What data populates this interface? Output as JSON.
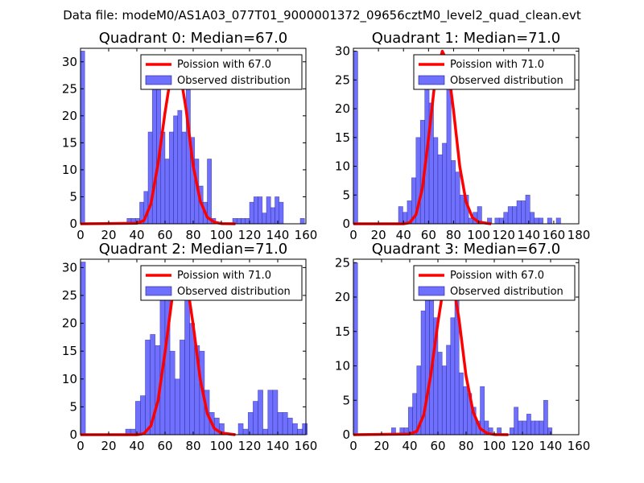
{
  "figure_title": "Data file: modeM0/AS1A03_077T01_9000001372_09656cztM0_level2_quad_clean.evt",
  "colors": {
    "histogram_fill": "#7070ff",
    "histogram_edge": "#1a1a80",
    "poisson_line": "#ff0000"
  },
  "chart_data": [
    {
      "type": "bar",
      "title": "Quadrant 0: Median=67.0",
      "legend": [
        "Poission with 67.0",
        "Observed distribution"
      ],
      "legend_position": "top-right",
      "poisson_mean": 67.0,
      "bin_width": 3,
      "xlim": [
        0,
        160
      ],
      "ylim": [
        0,
        32.5
      ],
      "xticks": [
        0,
        20,
        40,
        60,
        80,
        100,
        120,
        140,
        160
      ],
      "xtick_labels": [
        "0",
        "20",
        "40",
        "60",
        "80",
        "100",
        "120",
        "140",
        "160"
      ],
      "yticks": [
        0,
        5,
        10,
        15,
        20,
        25,
        30
      ],
      "ytick_labels": [
        "0",
        "5",
        "10",
        "15",
        "20",
        "25",
        "30"
      ],
      "bins": [
        [
          0,
          32
        ],
        [
          33,
          1
        ],
        [
          36,
          1
        ],
        [
          39,
          1
        ],
        [
          42,
          4
        ],
        [
          45,
          6
        ],
        [
          48,
          17
        ],
        [
          51,
          31
        ],
        [
          54,
          29
        ],
        [
          57,
          17
        ],
        [
          60,
          12
        ],
        [
          63,
          17
        ],
        [
          66,
          20
        ],
        [
          69,
          21
        ],
        [
          72,
          17
        ],
        [
          75,
          26
        ],
        [
          78,
          16
        ],
        [
          81,
          12
        ],
        [
          84,
          7
        ],
        [
          87,
          4
        ],
        [
          90,
          12
        ],
        [
          93,
          1
        ],
        [
          108,
          1
        ],
        [
          111,
          1
        ],
        [
          114,
          1
        ],
        [
          117,
          1
        ],
        [
          120,
          4
        ],
        [
          123,
          5
        ],
        [
          126,
          5
        ],
        [
          129,
          2
        ],
        [
          132,
          5
        ],
        [
          135,
          3
        ],
        [
          138,
          5
        ],
        [
          141,
          4
        ],
        [
          156,
          1
        ]
      ],
      "poisson": [
        [
          0,
          0
        ],
        [
          40,
          0.1
        ],
        [
          45,
          0.6
        ],
        [
          50,
          3.7
        ],
        [
          55,
          11.1
        ],
        [
          60,
          20.6
        ],
        [
          65,
          28.9
        ],
        [
          67,
          30.2
        ],
        [
          70,
          29.1
        ],
        [
          75,
          21.1
        ],
        [
          80,
          10.7
        ],
        [
          85,
          4.2
        ],
        [
          90,
          1.2
        ],
        [
          95,
          0.3
        ],
        [
          100,
          0.05
        ],
        [
          110,
          0
        ]
      ]
    },
    {
      "type": "bar",
      "title": "Quadrant 1: Median=71.0",
      "legend": [
        "Poission with 71.0",
        "Observed distribution"
      ],
      "legend_position": "top-right",
      "poisson_mean": 71.0,
      "bin_width": 3.5,
      "xlim": [
        0,
        180
      ],
      "ylim": [
        0,
        30.5
      ],
      "xticks": [
        0,
        20,
        40,
        60,
        80,
        100,
        120,
        140,
        160,
        180
      ],
      "xtick_labels": [
        "0",
        "20",
        "40",
        "60",
        "80",
        "100",
        "120",
        "140",
        "160",
        "180"
      ],
      "yticks": [
        0,
        5,
        10,
        15,
        20,
        25,
        30
      ],
      "ytick_labels": [
        "0",
        "5",
        "10",
        "15",
        "20",
        "25",
        "30"
      ],
      "bins": [
        [
          0,
          30
        ],
        [
          36,
          3
        ],
        [
          39.5,
          2
        ],
        [
          43,
          4
        ],
        [
          46.5,
          8
        ],
        [
          50,
          15
        ],
        [
          53.5,
          18
        ],
        [
          57,
          25
        ],
        [
          60.5,
          21
        ],
        [
          64,
          15
        ],
        [
          67.5,
          12
        ],
        [
          71,
          14
        ],
        [
          74.5,
          26
        ],
        [
          78,
          11
        ],
        [
          81.5,
          9
        ],
        [
          85,
          5
        ],
        [
          88.5,
          5
        ],
        [
          92,
          1
        ],
        [
          95.5,
          2
        ],
        [
          99,
          3
        ],
        [
          107,
          1
        ],
        [
          113,
          1
        ],
        [
          116.5,
          1
        ],
        [
          120,
          2
        ],
        [
          123.5,
          3
        ],
        [
          127,
          3
        ],
        [
          130.5,
          4
        ],
        [
          134,
          4
        ],
        [
          137.5,
          5
        ],
        [
          141,
          2
        ],
        [
          144.5,
          1
        ],
        [
          148,
          1
        ],
        [
          155,
          1
        ],
        [
          162,
          1
        ]
      ],
      "poisson": [
        [
          0,
          0
        ],
        [
          40,
          0.0
        ],
        [
          45,
          0.2
        ],
        [
          50,
          1.6
        ],
        [
          55,
          6.1
        ],
        [
          60,
          14.8
        ],
        [
          65,
          24.5
        ],
        [
          71,
          30.0
        ],
        [
          75,
          28.2
        ],
        [
          80,
          19.7
        ],
        [
          85,
          9.9
        ],
        [
          90,
          3.8
        ],
        [
          95,
          1.1
        ],
        [
          100,
          0.3
        ],
        [
          110,
          0
        ]
      ]
    },
    {
      "type": "bar",
      "title": "Quadrant 2: Median=71.0",
      "legend": [
        "Poission with 71.0",
        "Observed distribution"
      ],
      "legend_position": "top-right",
      "poisson_mean": 71.0,
      "bin_width": 3.5,
      "xlim": [
        0,
        160
      ],
      "ylim": [
        0,
        31.5
      ],
      "xticks": [
        0,
        20,
        40,
        60,
        80,
        100,
        120,
        140,
        160
      ],
      "xtick_labels": [
        "0",
        "20",
        "40",
        "60",
        "80",
        "100",
        "120",
        "140",
        "160"
      ],
      "yticks": [
        0,
        5,
        10,
        15,
        20,
        25,
        30
      ],
      "ytick_labels": [
        "0",
        "5",
        "10",
        "15",
        "20",
        "25",
        "30"
      ],
      "bins": [
        [
          0,
          31
        ],
        [
          32,
          1
        ],
        [
          35.5,
          1
        ],
        [
          39,
          6
        ],
        [
          42.5,
          7
        ],
        [
          46,
          17
        ],
        [
          49.5,
          18
        ],
        [
          53,
          16
        ],
        [
          56.5,
          25
        ],
        [
          60,
          28
        ],
        [
          63.5,
          15
        ],
        [
          67,
          10
        ],
        [
          70.5,
          17
        ],
        [
          74,
          29
        ],
        [
          77.5,
          20
        ],
        [
          81,
          16
        ],
        [
          84.5,
          15
        ],
        [
          88,
          8
        ],
        [
          91.5,
          4
        ],
        [
          95,
          3
        ],
        [
          98.5,
          2
        ],
        [
          112,
          2
        ],
        [
          115.5,
          1
        ],
        [
          119,
          4
        ],
        [
          122.5,
          6
        ],
        [
          126,
          8
        ],
        [
          129.5,
          1
        ],
        [
          133,
          8
        ],
        [
          136.5,
          8
        ],
        [
          140,
          4
        ],
        [
          143.5,
          4
        ],
        [
          147,
          3
        ],
        [
          150.5,
          2
        ],
        [
          154,
          1
        ],
        [
          157.5,
          2
        ]
      ],
      "poisson": [
        [
          0,
          0
        ],
        [
          40,
          0.0
        ],
        [
          45,
          0.2
        ],
        [
          50,
          1.6
        ],
        [
          55,
          6.1
        ],
        [
          60,
          14.8
        ],
        [
          65,
          24.5
        ],
        [
          71,
          30.0
        ],
        [
          75,
          28.2
        ],
        [
          80,
          19.7
        ],
        [
          85,
          9.9
        ],
        [
          90,
          3.8
        ],
        [
          95,
          1.1
        ],
        [
          100,
          0.3
        ],
        [
          110,
          0
        ]
      ]
    },
    {
      "type": "bar",
      "title": "Quadrant 3: Median=67.0",
      "legend": [
        "Poission with 67.0",
        "Observed distribution"
      ],
      "legend_position": "top-right",
      "poisson_mean": 67.0,
      "bin_width": 3,
      "xlim": [
        0,
        160
      ],
      "ylim": [
        0,
        25.5
      ],
      "xticks": [
        0,
        20,
        40,
        60,
        80,
        100,
        120,
        140,
        160
      ],
      "xtick_labels": [
        "0",
        "20",
        "40",
        "60",
        "80",
        "100",
        "120",
        "140",
        "160"
      ],
      "yticks": [
        0,
        5,
        10,
        15,
        20,
        25
      ],
      "ytick_labels": [
        "0",
        "5",
        "10",
        "15",
        "20",
        "25"
      ],
      "bins": [
        [
          0,
          25
        ],
        [
          27,
          1
        ],
        [
          33,
          1
        ],
        [
          36,
          1
        ],
        [
          39,
          4
        ],
        [
          42,
          6
        ],
        [
          45,
          10
        ],
        [
          48,
          18
        ],
        [
          51,
          22
        ],
        [
          54,
          20
        ],
        [
          57,
          17
        ],
        [
          60,
          12
        ],
        [
          63,
          10
        ],
        [
          66,
          13
        ],
        [
          69,
          17
        ],
        [
          72,
          22
        ],
        [
          75,
          9
        ],
        [
          78,
          7
        ],
        [
          81,
          6
        ],
        [
          84,
          4
        ],
        [
          87,
          2
        ],
        [
          90,
          7
        ],
        [
          93,
          2
        ],
        [
          96,
          1
        ],
        [
          102,
          1
        ],
        [
          111,
          1
        ],
        [
          114,
          4
        ],
        [
          117,
          2
        ],
        [
          120,
          2
        ],
        [
          123,
          3
        ],
        [
          126,
          2
        ],
        [
          129,
          2
        ],
        [
          132,
          2
        ],
        [
          135,
          5
        ],
        [
          138,
          1
        ]
      ],
      "poisson": [
        [
          0,
          0
        ],
        [
          40,
          0.1
        ],
        [
          45,
          0.5
        ],
        [
          50,
          2.9
        ],
        [
          55,
          8.8
        ],
        [
          60,
          16.3
        ],
        [
          65,
          22.9
        ],
        [
          67,
          23.9
        ],
        [
          70,
          23.0
        ],
        [
          75,
          16.7
        ],
        [
          80,
          8.5
        ],
        [
          85,
          3.3
        ],
        [
          90,
          0.9
        ],
        [
          95,
          0.2
        ],
        [
          100,
          0.04
        ],
        [
          110,
          0
        ]
      ]
    }
  ]
}
